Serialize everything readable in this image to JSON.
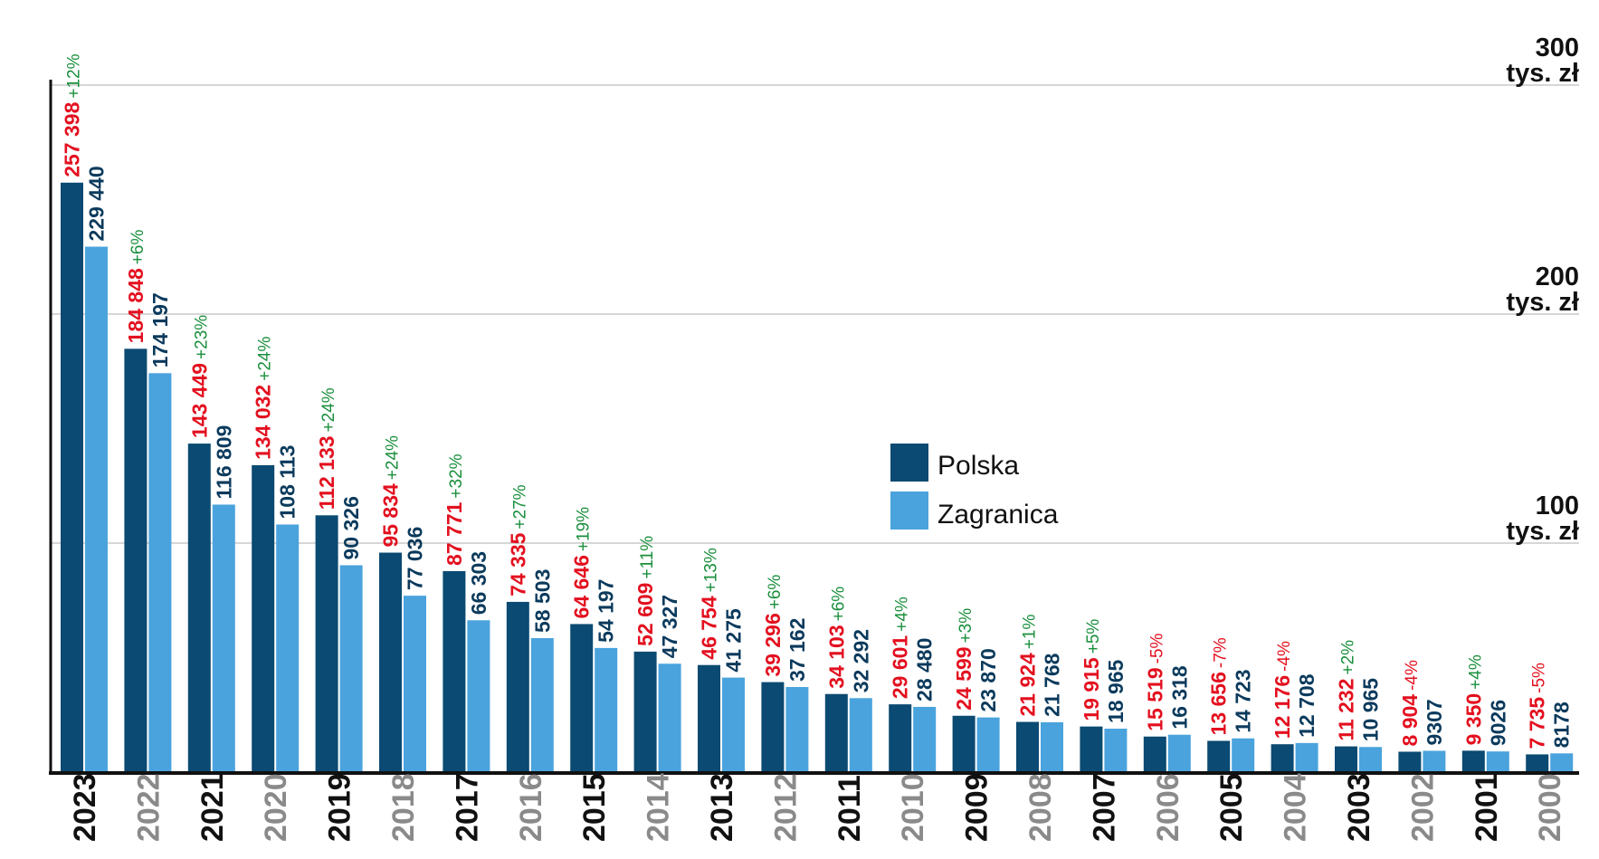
{
  "chart_data": {
    "type": "bar",
    "legend": {
      "placement": "center",
      "items": [
        {
          "label": "Polska",
          "color": "#0b4a72"
        },
        {
          "label": "Zagranica",
          "color": "#4aa3dc"
        }
      ]
    },
    "y_axis": {
      "range": [
        0,
        300000
      ],
      "unit_label": "tys. zł",
      "ticks": [
        {
          "value": 100000,
          "label": "100"
        },
        {
          "value": 200000,
          "label": "200"
        },
        {
          "value": 300000,
          "label": "300"
        }
      ],
      "grid": true
    },
    "colors": {
      "polska_value_text": "#e3101f",
      "zagranica_value_text": "#0b3a5c",
      "positive_change": "#1a8f3c",
      "negative_change": "#e3101f",
      "year_dark": "#111111",
      "year_light": "#8a8a8a"
    },
    "categories": [
      "2023",
      "2022",
      "2021",
      "2020",
      "2019",
      "2018",
      "2017",
      "2016",
      "2015",
      "2014",
      "2013",
      "2012",
      "2011",
      "2010",
      "2009",
      "2008",
      "2007",
      "2006",
      "2005",
      "2004",
      "2003",
      "2002",
      "2001",
      "2000"
    ],
    "series": [
      {
        "name": "Polska",
        "values": [
          257398,
          184848,
          143449,
          134032,
          112133,
          95834,
          87771,
          74335,
          64646,
          52609,
          46754,
          39296,
          34103,
          29601,
          24599,
          21924,
          19915,
          15519,
          13656,
          12176,
          11232,
          8904,
          9350,
          7735
        ],
        "labels": [
          "257 398",
          "184 848",
          "143 449",
          "134 032",
          "112 133",
          "95 834",
          "87 771",
          "74 335",
          "64 646",
          "52 609",
          "46 754",
          "39 296",
          "34 103",
          "29 601",
          "24 599",
          "21 924",
          "19 915",
          "15 519",
          "13 656",
          "12 176",
          "11 232",
          "8 904",
          "9 350",
          "7 735"
        ]
      },
      {
        "name": "Zagranica",
        "values": [
          229440,
          174197,
          116809,
          108113,
          90326,
          77036,
          66303,
          58503,
          54197,
          47327,
          41275,
          37162,
          32292,
          28480,
          23870,
          21768,
          18965,
          16318,
          14723,
          12708,
          10965,
          9307,
          9026,
          8178
        ],
        "labels": [
          "229 440",
          "174 197",
          "116 809",
          "108 113",
          "90 326",
          "77 036",
          "66 303",
          "58 503",
          "54 197",
          "47 327",
          "41 275",
          "37 162",
          "32 292",
          "28 480",
          "23 870",
          "21 768",
          "18 965",
          "16 318",
          "14 723",
          "12 708",
          "10 965",
          "9307",
          "9026",
          "8178"
        ]
      }
    ],
    "changes": [
      "+12%",
      "+6%",
      "+23%",
      "+24%",
      "+24%",
      "+24%",
      "+32%",
      "+27%",
      "+19%",
      "+11%",
      "+13%",
      "+6%",
      "+6%",
      "+4%",
      "+3%",
      "+1%",
      "+5%",
      "-5%",
      "-7%",
      "-4%",
      "+2%",
      "-4%",
      "+4%",
      "-5%"
    ]
  }
}
